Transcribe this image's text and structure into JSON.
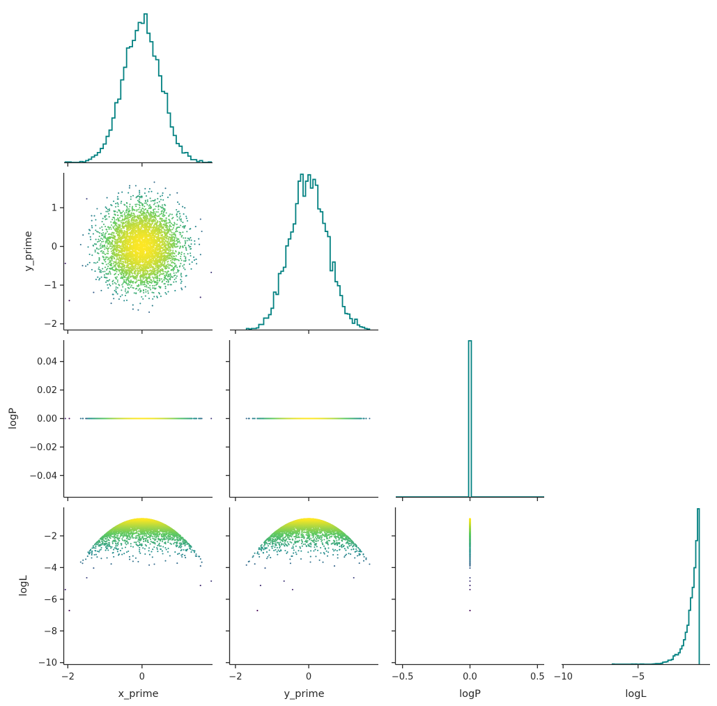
{
  "chart_data": {
    "type": "corner",
    "variables": [
      "x_prime",
      "y_prime",
      "logP",
      "logL"
    ],
    "colors": {
      "histogram": "#008080",
      "axis": "#262626",
      "colormap": [
        "#440154",
        "#3b528b",
        "#21918c",
        "#5ec962",
        "#fde725"
      ]
    },
    "colormap_name": "viridis",
    "color_by": "logL",
    "n_samples": 5000,
    "ranges": {
      "x_prime": [
        -2.1,
        1.9
      ],
      "y_prime": [
        -2.15,
        1.9
      ],
      "logP": [
        -0.055,
        0.055
      ],
      "logL": [
        -10.1,
        -0.2
      ]
    },
    "hist_ranges": {
      "logP": [
        -0.55,
        0.55
      ]
    },
    "ticks": {
      "x_prime": {
        "values": [
          -2,
          0
        ],
        "labels": [
          "−2",
          "0"
        ]
      },
      "y_prime": {
        "values": [
          -2,
          0
        ],
        "labels": [
          "−2",
          "0"
        ]
      },
      "logP": {
        "values": [
          -0.5,
          0.0,
          0.5
        ],
        "labels": [
          "−0.5",
          "0.0",
          "0.5"
        ]
      },
      "logL": {
        "values": [
          -10,
          -5
        ],
        "labels": [
          "−10",
          "−5"
        ]
      }
    },
    "row_ticks": {
      "y_prime": {
        "values": [
          1,
          0,
          -1,
          -2
        ],
        "labels": [
          "1",
          "0",
          "−1",
          "−2"
        ]
      },
      "logP": {
        "values": [
          0.04,
          0.02,
          0.0,
          -0.02,
          -0.04
        ],
        "labels": [
          "0.04",
          "0.02",
          "0.00",
          "−0.02",
          "−0.04"
        ]
      },
      "logL": {
        "values": [
          -2,
          -4,
          -6,
          -8,
          -10
        ],
        "labels": [
          "−2",
          "−4",
          "−6",
          "−8",
          "−10"
        ]
      }
    },
    "axis_labels": {
      "bottom": [
        "x_prime",
        "y_prime",
        "logP",
        "logL"
      ],
      "left": [
        "y_prime",
        "logP",
        "logL"
      ]
    },
    "distributions": {
      "x_prime": {
        "kind": "normal",
        "mean": 0.0,
        "sd": 0.5
      },
      "y_prime": {
        "kind": "normal",
        "mean": 0.0,
        "sd": 0.5
      },
      "logP": {
        "kind": "constant",
        "value": 0.0
      },
      "logL": {
        "kind": "formula",
        "formula": "-0.92 - (x_prime^2 + y_prime^2)"
      }
    },
    "histograms": {
      "logP": {
        "bins": [
          [
            -0.01,
            0.01
          ]
        ],
        "counts": [
          1
        ]
      }
    }
  }
}
